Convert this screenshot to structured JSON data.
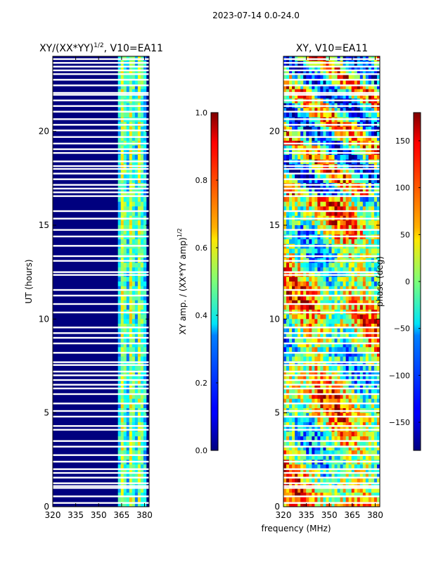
{
  "chart_data": {
    "suptitle": "2023-07-14 0.0-24.0",
    "xlabel": "frequency (MHz)",
    "panels": [
      {
        "type": "heatmap",
        "title": "XY/(XX*YY)",
        "title_superscript": "1/2",
        "title_suffix": ", V10=EA11",
        "ylabel": "UT (hours)",
        "xlim": [
          320,
          383
        ],
        "ylim": [
          0,
          24
        ],
        "xticks": [
          320,
          335,
          350,
          365,
          380
        ],
        "yticks": [
          0,
          5,
          10,
          15,
          20
        ],
        "colorbar": {
          "label": "XY amp. / (XX*YY amp)",
          "label_superscript": "1/2",
          "range": [
            0.0,
            1.0
          ],
          "ticks": [
            "0.0",
            "0.2",
            "0.4",
            "0.6",
            "0.8",
            "1.0"
          ],
          "tick_values": [
            0.0,
            0.2,
            0.4,
            0.6,
            0.8,
            1.0
          ],
          "colormap": "jet"
        },
        "features": {
          "background_level": 0.05,
          "elevated_band_mhz": [
            362,
            381
          ],
          "elevated_level": 0.45
        }
      },
      {
        "type": "heatmap",
        "title": "XY, V10=EA11",
        "xlim": [
          320,
          383
        ],
        "ylim": [
          0,
          24
        ],
        "xticks": [
          320,
          335,
          350,
          365,
          380
        ],
        "yticks": [
          0,
          5,
          10,
          15,
          20
        ],
        "colorbar": {
          "label": "phase (deg)",
          "range": [
            -180,
            180
          ],
          "ticks": [
            "−150",
            "−100",
            "−50",
            "0",
            "50",
            "100",
            "150"
          ],
          "tick_values": [
            -150,
            -100,
            -50,
            0,
            50,
            100,
            150
          ],
          "colormap": "jet"
        }
      }
    ],
    "flagged_gaps_ut": [
      0.2,
      0.55,
      1.0,
      1.1,
      1.25,
      1.55,
      1.8,
      2.0,
      2.4,
      2.75,
      3.2,
      3.5,
      4.1,
      4.3,
      4.8,
      5.1,
      5.5,
      6.0,
      6.3,
      6.5,
      6.75,
      7.0,
      7.2,
      7.55,
      7.7,
      8.2,
      8.7,
      9.0,
      9.25,
      9.55,
      10.35,
      10.8,
      11.25,
      11.55,
      12.35,
      12.5,
      13.1,
      13.35,
      13.9,
      14.4,
      14.75,
      15.35,
      15.75,
      16.55,
      16.75,
      16.95,
      17.15,
      17.45,
      17.75,
      18.0,
      18.15,
      18.4,
      18.85,
      19.05,
      19.35,
      19.7,
      20.05,
      20.35,
      20.65,
      21.05,
      21.35,
      21.65,
      21.95,
      22.05,
      22.45,
      22.75,
      23.05,
      23.25,
      23.45,
      23.65,
      23.85
    ]
  }
}
